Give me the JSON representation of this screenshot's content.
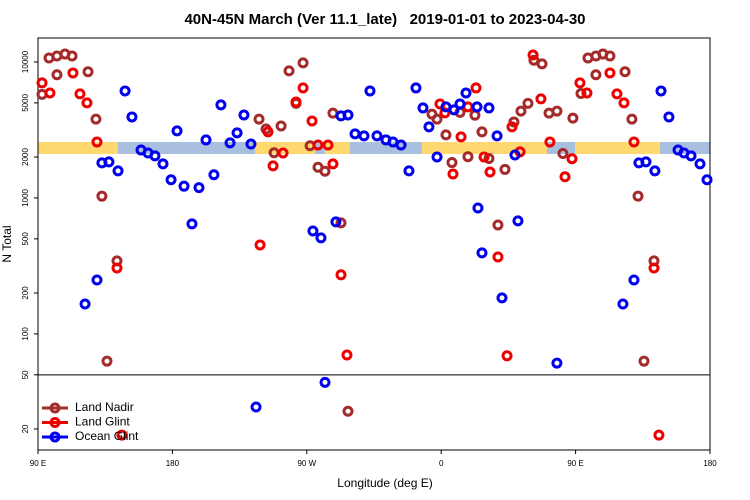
{
  "chart_data": {
    "type": "scatter",
    "title": "40N-45N March (Ver 11.1_late)   2019-01-01 to 2023-04-30",
    "x_label": "Longitude (deg E)",
    "y_label": "N Total",
    "log_y": true,
    "legend": "bottomleft",
    "hline": 50,
    "xlim": [
      90,
      540
    ],
    "ylim": [
      14,
      15000
    ],
    "xticks": [
      {
        "value": 90,
        "label": "90 E"
      },
      {
        "value": 180,
        "label": "180"
      },
      {
        "value": 270,
        "label": "90 W"
      },
      {
        "value": 360,
        "label": "0"
      },
      {
        "value": 450,
        "label": "90 E"
      },
      {
        "value": 540,
        "label": "180"
      }
    ],
    "yticks": [
      20,
      50,
      100,
      200,
      500,
      1000,
      2000,
      5000,
      10000
    ],
    "series": [
      {
        "name": "Land Nadir",
        "color": "#a52a2a",
        "x": [
          92.7,
          97.4,
          102.7,
          108.1,
          112.8,
          102.7,
          123.5,
          128.8,
          132.8,
          136.2,
          142.9,
          238.0,
          242.7,
          248.1,
          252.8,
          258.1,
          262.8,
          267.5,
          272.2,
          277.5,
          282.2,
          287.5,
          292.9,
          297.6,
          353.8,
          357.2,
          363.2,
          367.2,
          372.6,
          377.9,
          382.6,
          387.3,
          392.0,
          398.0,
          402.7,
          408.7,
          413.4,
          418.1,
          422.1,
          427.5,
          432.2,
          437.5,
          441.5,
          448.2,
          453.6,
          458.3,
          463.6,
          468.3,
          473.0,
          463.6,
          483.1,
          487.7,
          491.8,
          495.8,
          502.5
        ],
        "values": [
          5770,
          10700,
          11050,
          11430,
          11050,
          8050,
          8470,
          3800,
          1030,
          63,
          344,
          3800,
          3210,
          2150,
          3380,
          8600,
          4960,
          9840,
          2420,
          1680,
          1570,
          4200,
          655,
          27,
          4130,
          3800,
          2910,
          1820,
          4260,
          2010,
          4060,
          3060,
          1950,
          632,
          1620,
          3620,
          4350,
          4960,
          10300,
          9680,
          4200,
          4350,
          2120,
          3860,
          5860,
          10700,
          11050,
          11430,
          11050,
          8050,
          8470,
          3800,
          1030,
          63,
          344
        ]
      },
      {
        "name": "Land Glint",
        "color": "#ee0000",
        "x": [
          92.7,
          98.0,
          113.4,
          118.1,
          122.8,
          129.5,
          142.9,
          146.2,
          238.7,
          244.0,
          247.4,
          254.1,
          262.8,
          267.5,
          273.5,
          277.5,
          284.2,
          287.5,
          292.9,
          296.9,
          359.2,
          362.5,
          367.9,
          373.3,
          377.9,
          383.3,
          388.7,
          392.7,
          398.0,
          404.1,
          407.4,
          412.8,
          421.5,
          426.8,
          432.8,
          442.9,
          447.6,
          452.9,
          457.6,
          473.0,
          477.7,
          482.4,
          489.1,
          502.5,
          505.8
        ],
        "values": [
          7010,
          5910,
          8300,
          5820,
          5000,
          2580,
          305,
          18,
          451,
          3060,
          1720,
          2140,
          5080,
          6440,
          3680,
          2450,
          2450,
          1780,
          272,
          70,
          4910,
          4220,
          1500,
          2810,
          4670,
          6440,
          2000,
          1550,
          368,
          69,
          3330,
          2180,
          11250,
          5350,
          2580,
          1430,
          1940,
          7010,
          5910,
          8300,
          5820,
          5000,
          2580,
          305,
          18
        ]
      },
      {
        "name": "Ocean Glint",
        "color": "#0000ee",
        "x": [
          121.5,
          129.5,
          132.8,
          137.5,
          143.6,
          148.3,
          152.9,
          159.0,
          163.7,
          168.3,
          173.7,
          179.1,
          183.1,
          187.8,
          193.1,
          197.8,
          202.5,
          207.8,
          212.5,
          218.6,
          223.3,
          227.9,
          232.6,
          236.0,
          274.1,
          279.5,
          282.2,
          289.5,
          292.9,
          297.6,
          302.3,
          308.3,
          312.3,
          317.0,
          323.0,
          327.7,
          333.1,
          338.4,
          343.1,
          347.8,
          351.8,
          357.2,
          363.2,
          368.6,
          372.6,
          376.6,
          384.0,
          384.6,
          387.3,
          392.0,
          397.4,
          400.7,
          409.4,
          411.4,
          437.5,
          481.7,
          489.1,
          492.4,
          497.1,
          503.1,
          507.2,
          512.5,
          518.6,
          522.6,
          527.3,
          533.3,
          538.0
        ],
        "values": [
          166,
          249,
          1810,
          1840,
          1580,
          6120,
          3940,
          2250,
          2140,
          2040,
          1780,
          1360,
          3110,
          1220,
          644,
          1190,
          2670,
          1480,
          4830,
          2540,
          3010,
          4070,
          2490,
          29,
          571,
          508,
          44,
          666,
          4010,
          4070,
          2960,
          2860,
          6120,
          2860,
          2670,
          2580,
          2450,
          1580,
          6440,
          4590,
          3330,
          2000,
          4670,
          4440,
          4910,
          5910,
          4670,
          843,
          394,
          4590,
          2860,
          184,
          2070,
          678,
          61,
          166,
          249,
          1810,
          1840,
          1580,
          6120,
          3940,
          2250,
          2140,
          2040,
          1780,
          1360
        ]
      }
    ]
  }
}
